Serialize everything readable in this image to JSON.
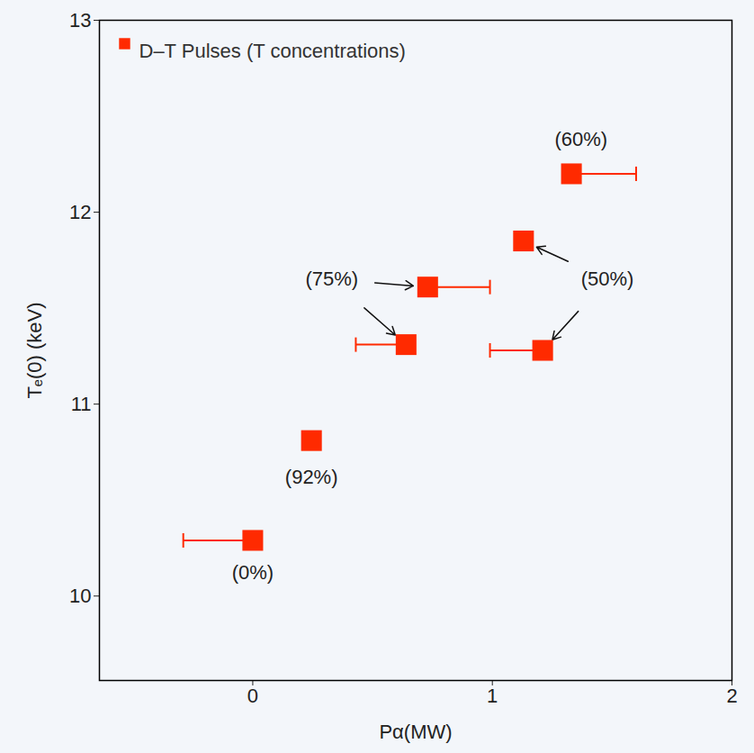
{
  "chart_data": {
    "type": "scatter",
    "x_label": "Pα(MW)",
    "y_label": "Tₑ(0) (keV)",
    "xlim": [
      -0.64,
      2.0
    ],
    "xticks": [
      0,
      1,
      2
    ],
    "ylim": [
      9.56,
      13
    ],
    "yticks": [
      10,
      11,
      12,
      13
    ],
    "grid": false,
    "legend": "top-left",
    "x": [
      0,
      0.245,
      0.64,
      0.73,
      1.13,
      1.21,
      1.33
    ],
    "series": [
      {
        "name": "D–T Pulses (T concentrations)",
        "color": "#ff2a00",
        "marker": "square",
        "values": [
          10.29,
          10.81,
          11.31,
          11.61,
          11.85,
          11.28,
          12.2
        ],
        "xerr_min": [
          -0.29,
          null,
          0.43,
          null,
          null,
          0.99,
          null
        ],
        "xerr_max": [
          null,
          null,
          null,
          0.99,
          null,
          null,
          1.6
        ]
      }
    ],
    "annotations": [
      {
        "text": "(0%)",
        "x": 0,
        "y": 10.12
      },
      {
        "text": "(92%)",
        "x": 0.245,
        "y": 10.62
      },
      {
        "text": "(75%)",
        "x": 0.33,
        "y": 11.65,
        "points": [
          2,
          3
        ]
      },
      {
        "text": "(50%)",
        "x": 1.48,
        "y": 11.65,
        "points": [
          4,
          5
        ]
      },
      {
        "text": "(60%)",
        "x": 1.37,
        "y": 12.38
      }
    ]
  }
}
